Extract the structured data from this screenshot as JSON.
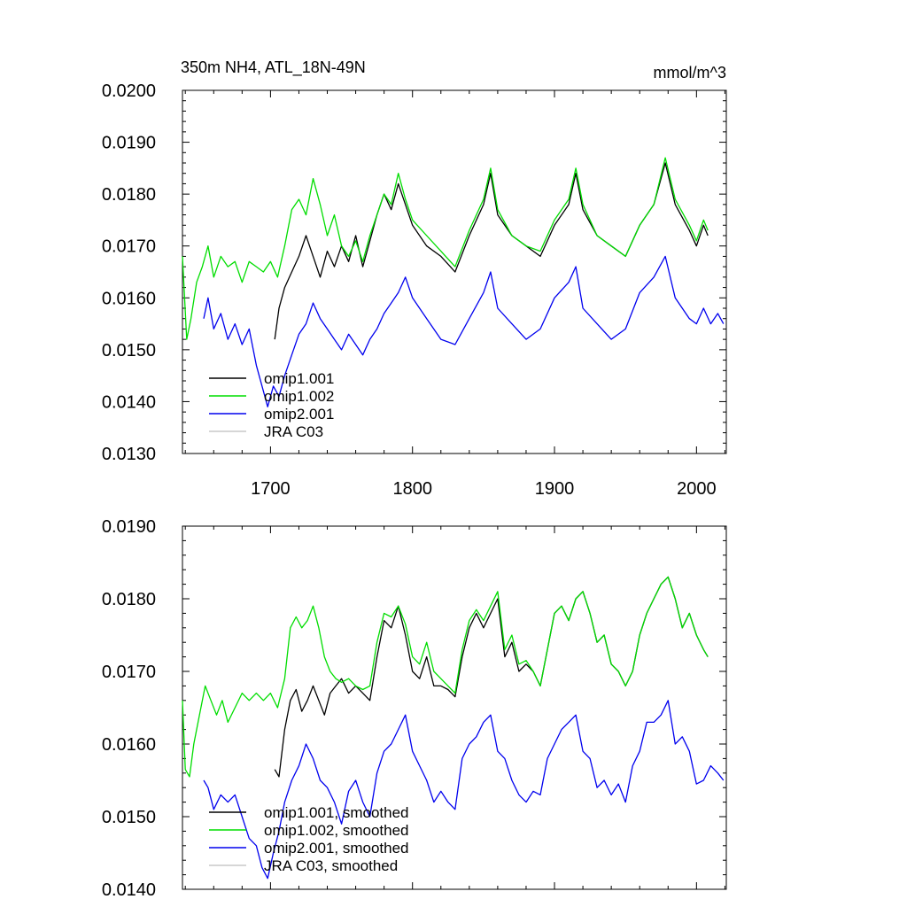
{
  "chart_data": [
    {
      "type": "line",
      "title": "350m NH4, ATL_18N-49N",
      "units": "mmol/m^3",
      "xlim": [
        1638,
        2021
      ],
      "ylim": [
        0.013,
        0.02
      ],
      "xticks": [
        1700,
        1800,
        1900,
        2000
      ],
      "xtick_labels": [
        "1700",
        "1800",
        "1900",
        "2000"
      ],
      "yticks": [
        0.013,
        0.014,
        0.015,
        0.016,
        0.017,
        0.018,
        0.019,
        0.02
      ],
      "ytick_labels": [
        "0.0130",
        "0.0140",
        "0.0150",
        "0.0160",
        "0.0170",
        "0.0180",
        "0.0190",
        "0.0200"
      ],
      "legend_position": "lower-left",
      "series": [
        {
          "name": "omip1.001",
          "color": "#000000",
          "x": [
            1703,
            1706,
            1710,
            1715,
            1720,
            1725,
            1730,
            1735,
            1740,
            1745,
            1750,
            1755,
            1760,
            1765,
            1770,
            1775,
            1780,
            1785,
            1790,
            1795,
            1800,
            1810,
            1820,
            1830,
            1840,
            1850,
            1855,
            1860,
            1870,
            1880,
            1890,
            1900,
            1910,
            1915,
            1920,
            1930,
            1940,
            1950,
            1960,
            1970,
            1978,
            1985,
            1995,
            2000,
            2005,
            2008
          ],
          "y": [
            0.0152,
            0.0158,
            0.0162,
            0.0165,
            0.0168,
            0.0172,
            0.0168,
            0.0164,
            0.0169,
            0.0166,
            0.017,
            0.0167,
            0.0172,
            0.0166,
            0.0171,
            0.0176,
            0.018,
            0.0177,
            0.0182,
            0.0178,
            0.0174,
            0.017,
            0.0168,
            0.0165,
            0.0172,
            0.0178,
            0.0184,
            0.0176,
            0.0172,
            0.017,
            0.0168,
            0.0174,
            0.0178,
            0.0184,
            0.0177,
            0.0172,
            0.017,
            0.0168,
            0.0174,
            0.0178,
            0.0186,
            0.0178,
            0.0173,
            0.017,
            0.0174,
            0.0172
          ]
        },
        {
          "name": "omip1.002",
          "color": "#00dd00",
          "x": [
            1638,
            1641,
            1644,
            1648,
            1652,
            1656,
            1660,
            1665,
            1670,
            1675,
            1680,
            1685,
            1690,
            1695,
            1700,
            1705,
            1710,
            1715,
            1720,
            1725,
            1730,
            1735,
            1740,
            1745,
            1750,
            1755,
            1760,
            1765,
            1770,
            1775,
            1780,
            1785,
            1790,
            1795,
            1800,
            1810,
            1820,
            1830,
            1840,
            1850,
            1855,
            1860,
            1870,
            1880,
            1890,
            1900,
            1910,
            1915,
            1920,
            1930,
            1940,
            1950,
            1960,
            1970,
            1978,
            1985,
            1995,
            2000,
            2005,
            2008
          ],
          "y": [
            0.0168,
            0.0152,
            0.0156,
            0.0163,
            0.0166,
            0.017,
            0.0164,
            0.0168,
            0.0166,
            0.0167,
            0.0163,
            0.0167,
            0.0166,
            0.0165,
            0.0167,
            0.0164,
            0.017,
            0.0177,
            0.0179,
            0.0176,
            0.0183,
            0.0178,
            0.0172,
            0.0176,
            0.017,
            0.0168,
            0.0171,
            0.0167,
            0.0172,
            0.0176,
            0.018,
            0.0178,
            0.0184,
            0.0179,
            0.0175,
            0.0172,
            0.0169,
            0.0166,
            0.0173,
            0.0179,
            0.0185,
            0.0177,
            0.0172,
            0.017,
            0.0169,
            0.0175,
            0.0179,
            0.0185,
            0.0178,
            0.0172,
            0.017,
            0.0168,
            0.0174,
            0.0178,
            0.0187,
            0.0179,
            0.0174,
            0.0171,
            0.0175,
            0.0173
          ]
        },
        {
          "name": "omip2.001",
          "color": "#0000ee",
          "x": [
            1653,
            1656,
            1660,
            1665,
            1670,
            1675,
            1680,
            1685,
            1690,
            1695,
            1698,
            1702,
            1706,
            1710,
            1715,
            1720,
            1725,
            1730,
            1735,
            1740,
            1745,
            1750,
            1755,
            1760,
            1765,
            1770,
            1775,
            1780,
            1785,
            1790,
            1795,
            1800,
            1810,
            1820,
            1830,
            1840,
            1850,
            1855,
            1860,
            1870,
            1880,
            1890,
            1900,
            1910,
            1915,
            1920,
            1930,
            1940,
            1950,
            1960,
            1970,
            1978,
            1985,
            1995,
            2000,
            2005,
            2010,
            2015,
            2019
          ],
          "y": [
            0.0156,
            0.016,
            0.0154,
            0.0157,
            0.0152,
            0.0155,
            0.0151,
            0.0154,
            0.0147,
            0.0142,
            0.0139,
            0.0143,
            0.0141,
            0.0145,
            0.0149,
            0.0153,
            0.0155,
            0.0159,
            0.0156,
            0.0154,
            0.0152,
            0.015,
            0.0153,
            0.0151,
            0.0149,
            0.0152,
            0.0154,
            0.0157,
            0.0159,
            0.0161,
            0.0164,
            0.016,
            0.0156,
            0.0152,
            0.0151,
            0.0156,
            0.0161,
            0.0165,
            0.0158,
            0.0155,
            0.0152,
            0.0154,
            0.016,
            0.0163,
            0.0166,
            0.0158,
            0.0155,
            0.0152,
            0.0154,
            0.0161,
            0.0164,
            0.0168,
            0.016,
            0.0156,
            0.0155,
            0.0158,
            0.0155,
            0.0157,
            0.0155
          ]
        },
        {
          "name": "JRA C03",
          "color": "#c8c8c8",
          "x": [],
          "y": []
        }
      ]
    },
    {
      "type": "line",
      "title": "",
      "xlim": [
        1638,
        2021
      ],
      "ylim": [
        0.014,
        0.019
      ],
      "xticks": [
        1700,
        1800,
        1900,
        2000
      ],
      "yticks": [
        0.014,
        0.015,
        0.016,
        0.017,
        0.018,
        0.019
      ],
      "ytick_labels": [
        "0.0140",
        "0.0150",
        "0.0160",
        "0.0170",
        "0.0180",
        "0.0190"
      ],
      "legend_position": "lower-left",
      "series": [
        {
          "name": "omip1.001, smoothed",
          "color": "#000000",
          "x": [
            1703,
            1706,
            1710,
            1714,
            1718,
            1722,
            1726,
            1730,
            1734,
            1738,
            1742,
            1746,
            1750,
            1755,
            1760,
            1765,
            1770,
            1775,
            1780,
            1785,
            1790,
            1795,
            1800,
            1805,
            1810,
            1815,
            1820,
            1825,
            1830,
            1835,
            1840,
            1845,
            1850,
            1855,
            1860,
            1865,
            1870,
            1875,
            1880,
            1885,
            1890,
            1895,
            1900,
            1905,
            1910,
            1915,
            1920,
            1925,
            1930,
            1935,
            1940,
            1945,
            1950,
            1955,
            1960,
            1965,
            1970,
            1975,
            1980,
            1985,
            1990,
            1995,
            2000,
            2005,
            2008
          ],
          "y": [
            0.01565,
            0.01555,
            0.0162,
            0.0166,
            0.01675,
            0.01645,
            0.0166,
            0.0168,
            0.0166,
            0.0164,
            0.0167,
            0.0168,
            0.0169,
            0.0167,
            0.0168,
            0.0167,
            0.0166,
            0.0172,
            0.0177,
            0.0176,
            0.0179,
            0.0175,
            0.017,
            0.0169,
            0.0172,
            0.0168,
            0.0168,
            0.01675,
            0.01665,
            0.0172,
            0.0176,
            0.0178,
            0.0176,
            0.0178,
            0.018,
            0.0172,
            0.0174,
            0.017,
            0.0171,
            0.017,
            0.0168,
            0.0173,
            0.0178,
            0.0179,
            0.0177,
            0.018,
            0.0181,
            0.0178,
            0.0174,
            0.0175,
            0.0171,
            0.017,
            0.0168,
            0.017,
            0.0175,
            0.0178,
            0.018,
            0.0182,
            0.0183,
            0.018,
            0.0176,
            0.0178,
            0.0175,
            0.0173,
            0.0172
          ]
        },
        {
          "name": "omip1.002, smoothed",
          "color": "#00dd00",
          "x": [
            1638,
            1640,
            1643,
            1646,
            1650,
            1654,
            1658,
            1662,
            1666,
            1670,
            1675,
            1680,
            1685,
            1690,
            1695,
            1700,
            1705,
            1710,
            1714,
            1718,
            1722,
            1726,
            1730,
            1734,
            1738,
            1742,
            1746,
            1750,
            1755,
            1760,
            1765,
            1770,
            1775,
            1780,
            1785,
            1790,
            1795,
            1800,
            1805,
            1810,
            1815,
            1820,
            1825,
            1830,
            1835,
            1840,
            1845,
            1850,
            1855,
            1860,
            1865,
            1870,
            1875,
            1880,
            1885,
            1890,
            1895,
            1900,
            1905,
            1910,
            1915,
            1920,
            1925,
            1930,
            1935,
            1940,
            1945,
            1950,
            1955,
            1960,
            1965,
            1970,
            1975,
            1980,
            1985,
            1990,
            1995,
            2000,
            2005,
            2008
          ],
          "y": [
            0.0166,
            0.01565,
            0.01555,
            0.016,
            0.0164,
            0.0168,
            0.0166,
            0.0164,
            0.0166,
            0.0163,
            0.0165,
            0.0167,
            0.0166,
            0.0167,
            0.0166,
            0.0167,
            0.0165,
            0.0169,
            0.0176,
            0.01775,
            0.0176,
            0.0177,
            0.0179,
            0.0176,
            0.0172,
            0.017,
            0.0169,
            0.01685,
            0.0169,
            0.0168,
            0.01675,
            0.0168,
            0.0174,
            0.0178,
            0.01775,
            0.0179,
            0.01765,
            0.0172,
            0.0171,
            0.0174,
            0.017,
            0.0169,
            0.0168,
            0.0167,
            0.0173,
            0.0177,
            0.01785,
            0.0177,
            0.0179,
            0.0181,
            0.0173,
            0.0175,
            0.0171,
            0.01715,
            0.017,
            0.0168,
            0.0173,
            0.0178,
            0.0179,
            0.0177,
            0.018,
            0.0181,
            0.0178,
            0.0174,
            0.0175,
            0.0171,
            0.017,
            0.0168,
            0.017,
            0.0175,
            0.0178,
            0.018,
            0.0182,
            0.0183,
            0.018,
            0.0176,
            0.0178,
            0.0175,
            0.0173,
            0.0172
          ]
        },
        {
          "name": "omip2.001, smoothed",
          "color": "#0000ee",
          "x": [
            1653,
            1656,
            1660,
            1665,
            1670,
            1675,
            1680,
            1685,
            1690,
            1694,
            1698,
            1702,
            1706,
            1710,
            1715,
            1720,
            1725,
            1730,
            1735,
            1740,
            1745,
            1750,
            1755,
            1760,
            1765,
            1770,
            1775,
            1780,
            1785,
            1790,
            1795,
            1800,
            1805,
            1810,
            1815,
            1820,
            1825,
            1830,
            1835,
            1840,
            1845,
            1850,
            1855,
            1860,
            1865,
            1870,
            1875,
            1880,
            1885,
            1890,
            1895,
            1900,
            1905,
            1910,
            1915,
            1920,
            1925,
            1930,
            1935,
            1940,
            1945,
            1950,
            1955,
            1960,
            1965,
            1970,
            1975,
            1980,
            1985,
            1990,
            1995,
            2000,
            2005,
            2010,
            2015,
            2019
          ],
          "y": [
            0.0155,
            0.0154,
            0.0151,
            0.0153,
            0.0152,
            0.0153,
            0.015,
            0.0147,
            0.0146,
            0.0143,
            0.01415,
            0.0145,
            0.0148,
            0.0152,
            0.0155,
            0.0157,
            0.016,
            0.0158,
            0.0155,
            0.0154,
            0.0152,
            0.0149,
            0.01535,
            0.0155,
            0.0152,
            0.015,
            0.0156,
            0.0159,
            0.016,
            0.0162,
            0.0164,
            0.0159,
            0.0157,
            0.0155,
            0.0152,
            0.01535,
            0.0152,
            0.0151,
            0.0158,
            0.016,
            0.0161,
            0.0163,
            0.0164,
            0.0159,
            0.0158,
            0.0155,
            0.0153,
            0.0152,
            0.01535,
            0.0153,
            0.0158,
            0.016,
            0.0162,
            0.0163,
            0.0164,
            0.0159,
            0.0158,
            0.0154,
            0.0155,
            0.0153,
            0.01545,
            0.0152,
            0.0157,
            0.0159,
            0.0163,
            0.0163,
            0.0164,
            0.0166,
            0.016,
            0.0161,
            0.0159,
            0.01545,
            0.0155,
            0.0157,
            0.0156,
            0.0155
          ]
        },
        {
          "name": "JRA C03, smoothed",
          "color": "#c8c8c8",
          "x": [],
          "y": []
        }
      ]
    }
  ]
}
